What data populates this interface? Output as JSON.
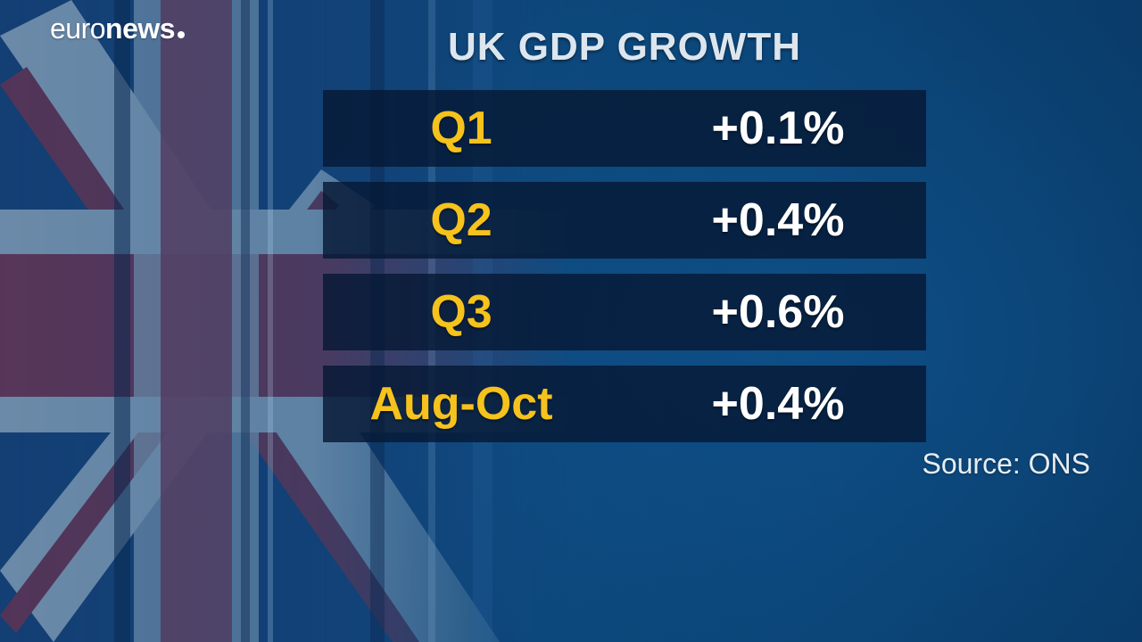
{
  "brand": {
    "part1": "euro",
    "part2": "news"
  },
  "chart_data": {
    "type": "table",
    "title": "UK GDP GROWTH",
    "rows": [
      {
        "period": "Q1",
        "growth": "+0.1%",
        "value": 0.1
      },
      {
        "period": "Q2",
        "growth": "+0.4%",
        "value": 0.4
      },
      {
        "period": "Q3",
        "growth": "+0.6%",
        "value": 0.6
      },
      {
        "period": "Aug-Oct",
        "growth": "+0.4%",
        "value": 0.4
      }
    ],
    "source": "Source: ONS"
  },
  "colors": {
    "label": "#f6c21c",
    "value": "#ffffff",
    "row_bg": "#061834",
    "background": "#0f4b7f"
  }
}
